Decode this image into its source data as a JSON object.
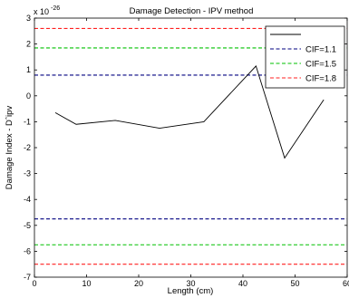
{
  "chart_data": {
    "type": "line",
    "title": "Damage Detection - IPV method",
    "xlabel": "Length (cm)",
    "ylabel": "Damage Index - Dˆipv",
    "y_exponent_prefix": "x 10",
    "y_exponent_power": "-26",
    "xlim": [
      0,
      60
    ],
    "ylim": [
      -7,
      3
    ],
    "x_ticks": [
      0,
      10,
      20,
      30,
      40,
      50,
      60
    ],
    "y_ticks": [
      -7,
      -6,
      -5,
      -4,
      -3,
      -2,
      -1,
      0,
      1,
      2,
      3
    ],
    "grid": false,
    "legend_position": "top-right",
    "series": [
      {
        "name": "",
        "color": "#000000",
        "style": "solid",
        "x": [
          4,
          8,
          15.5,
          24,
          32.5,
          42.5,
          48,
          55.5
        ],
        "y": [
          -0.65,
          -1.1,
          -0.95,
          -1.25,
          -1.0,
          1.15,
          -2.4,
          -0.15
        ]
      }
    ],
    "thresholds": [
      {
        "name": "CIF=1.1",
        "color": "#000080",
        "style": "dashed",
        "upper": 0.8,
        "lower": -4.75
      },
      {
        "name": "CIF=1.5",
        "color": "#00c000",
        "style": "dashed",
        "upper": 1.85,
        "lower": -5.75
      },
      {
        "name": "CIF=1.8",
        "color": "#ff2020",
        "style": "dashed",
        "upper": 2.6,
        "lower": -6.5
      }
    ]
  }
}
